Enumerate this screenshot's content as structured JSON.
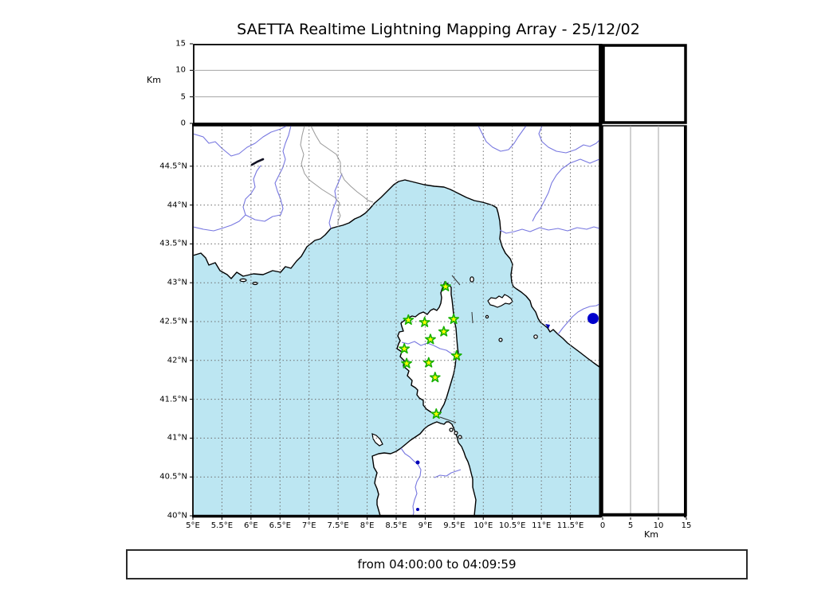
{
  "title": "SAETTA Realtime Lightning Mapping Array - 25/12/02",
  "footer": {
    "time_range": "from 04:00:00 to 04:09:59"
  },
  "axes": {
    "altitude_left": {
      "unit_label": "Km",
      "ticks": [
        {
          "value": 0,
          "label": "0"
        },
        {
          "value": 5,
          "label": "5"
        },
        {
          "value": 10,
          "label": "10"
        },
        {
          "value": 15,
          "label": "15"
        }
      ]
    },
    "altitude_right": {
      "unit_label": "Km",
      "ticks": [
        {
          "value": 0,
          "label": "0"
        },
        {
          "value": 5,
          "label": "5"
        },
        {
          "value": 10,
          "label": "10"
        },
        {
          "value": 15,
          "label": "15"
        }
      ]
    },
    "longitude": {
      "ticks": [
        {
          "value": 5,
          "label": "5°E"
        },
        {
          "value": 5.5,
          "label": "5.5°E"
        },
        {
          "value": 6,
          "label": "6°E"
        },
        {
          "value": 6.5,
          "label": "6.5°E"
        },
        {
          "value": 7,
          "label": "7°E"
        },
        {
          "value": 7.5,
          "label": "7.5°E"
        },
        {
          "value": 8,
          "label": "8°E"
        },
        {
          "value": 8.5,
          "label": "8.5°E"
        },
        {
          "value": 9,
          "label": "9°E"
        },
        {
          "value": 9.5,
          "label": "9.5°E"
        },
        {
          "value": 10,
          "label": "10°E"
        },
        {
          "value": 10.5,
          "label": "10.5°E"
        },
        {
          "value": 11,
          "label": "11°E"
        },
        {
          "value": 11.5,
          "label": "11.5°E"
        }
      ]
    },
    "latitude": {
      "ticks": [
        {
          "value": 40,
          "label": "40°N"
        },
        {
          "value": 40.5,
          "label": "40.5°N"
        },
        {
          "value": 41,
          "label": "41°N"
        },
        {
          "value": 41.5,
          "label": "41.5°N"
        },
        {
          "value": 42,
          "label": "42°N"
        },
        {
          "value": 42.5,
          "label": "42.5°N"
        },
        {
          "value": 43,
          "label": "43°N"
        },
        {
          "value": 43.5,
          "label": "43.5°N"
        },
        {
          "value": 44,
          "label": "44°N"
        },
        {
          "value": 44.5,
          "label": "44.5°N"
        }
      ]
    }
  },
  "chart_data": {
    "type": "map",
    "extent": {
      "lon_range": [
        5,
        12
      ],
      "lat_range": [
        40,
        45.02
      ],
      "altitude_range_km": [
        0,
        15
      ]
    },
    "grid": "dotted 0.5 degree graticule",
    "stations": [
      {
        "lon": 9.35,
        "lat": 42.95
      },
      {
        "lon": 8.71,
        "lat": 42.52
      },
      {
        "lon": 8.99,
        "lat": 42.49
      },
      {
        "lon": 9.49,
        "lat": 42.53
      },
      {
        "lon": 9.32,
        "lat": 42.37
      },
      {
        "lon": 9.09,
        "lat": 42.27
      },
      {
        "lon": 8.64,
        "lat": 42.15
      },
      {
        "lon": 9.54,
        "lat": 42.06
      },
      {
        "lon": 8.68,
        "lat": 41.96
      },
      {
        "lon": 9.06,
        "lat": 41.97
      },
      {
        "lon": 9.17,
        "lat": 41.78
      },
      {
        "lon": 9.19,
        "lat": 41.31
      }
    ],
    "events": [
      {
        "lon": 11.89,
        "lat": 42.54
      }
    ],
    "altitude_panels_empty": true
  },
  "colors": {
    "sea": "#BCE6F2",
    "land": "#FFFFFF",
    "coastline": "#000000",
    "river": "#7777E0",
    "admin_border": "#999999",
    "grid": "#6e6e6e",
    "station_fill": "#FFFF00",
    "station_stroke": "#17B000",
    "event_dot": "#0000CD"
  }
}
